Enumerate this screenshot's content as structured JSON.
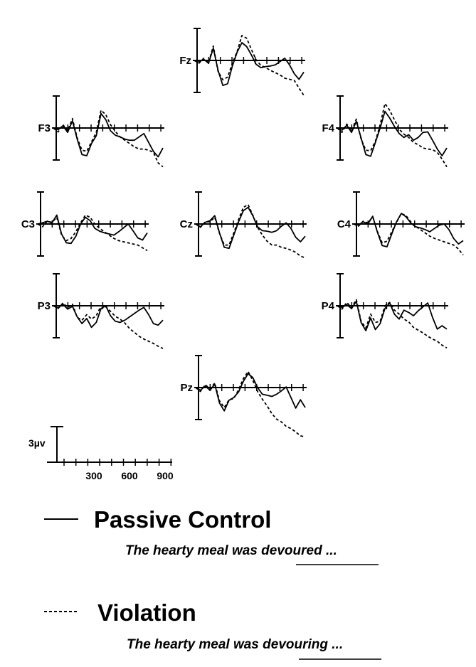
{
  "chart_data": {
    "type": "line",
    "channels": [
      {
        "label": "Fz",
        "series": [
          [
            0,
            -0.3,
            0.2,
            -0.5,
            2.2,
            -1.8,
            -4.5,
            -4.2,
            -1.0,
            1.5,
            3.2,
            2.5,
            1.0,
            -0.7,
            -1.3,
            -1.1,
            -1.0,
            -0.8,
            -0.2,
            0.4,
            -0.8,
            -2.4,
            -3.4,
            -2.1
          ],
          [
            0,
            -0.5,
            0.4,
            -0.4,
            2.6,
            -2.0,
            -3.5,
            -3.0,
            -0.5,
            1.6,
            4.5,
            4.0,
            2.0,
            0.1,
            -0.9,
            -1.3,
            -1.8,
            -2.2,
            -2.6,
            -3.2,
            -3.4,
            -3.6,
            -5.0,
            -6.3
          ]
        ]
      },
      {
        "label": "F3",
        "series": [
          [
            0,
            -0.3,
            0.4,
            -0.8,
            1.3,
            -2.0,
            -4.8,
            -5.0,
            -2.8,
            -1.4,
            2.6,
            1.5,
            -0.5,
            -1.3,
            -1.6,
            -2.0,
            -2.2,
            -2.2,
            -1.6,
            -1.0,
            -2.6,
            -4.2,
            -5.2,
            -3.6
          ],
          [
            0,
            -0.7,
            0.6,
            -0.5,
            1.7,
            -1.8,
            -4.0,
            -4.2,
            -2.5,
            -0.8,
            3.2,
            2.4,
            0.6,
            -0.6,
            -1.6,
            -2.2,
            -2.8,
            -3.4,
            -3.8,
            -3.8,
            -4.0,
            -4.4,
            -6.3,
            -7.0
          ]
        ]
      },
      {
        "label": "F4",
        "series": [
          [
            0,
            -0.4,
            0.5,
            -0.8,
            1.2,
            -1.8,
            -4.8,
            -5.1,
            -2.6,
            0.0,
            3.0,
            1.8,
            0.3,
            -1.0,
            -1.7,
            -1.2,
            -2.2,
            -1.7,
            -0.8,
            -0.7,
            -2.2,
            -3.8,
            -5.0,
            -3.6
          ],
          [
            0,
            -0.8,
            0.7,
            -0.5,
            1.6,
            -2.0,
            -4.0,
            -4.1,
            -2.4,
            0.6,
            4.4,
            3.2,
            1.5,
            -0.2,
            -1.1,
            -1.7,
            -2.6,
            -3.0,
            -3.6,
            -3.8,
            -3.9,
            -4.4,
            -5.6,
            -7.0
          ]
        ]
      },
      {
        "label": "C3",
        "series": [
          [
            0,
            0.2,
            0.5,
            0.2,
            1.6,
            -1.8,
            -3.4,
            -3.5,
            -2.2,
            0.0,
            1.2,
            0.6,
            -0.8,
            -1.3,
            -1.6,
            -1.8,
            -2.0,
            -1.4,
            -0.7,
            0.0,
            -1.2,
            -2.5,
            -2.9,
            -1.6
          ],
          [
            0,
            -0.5,
            0.5,
            0.3,
            1.2,
            -2.0,
            -3.0,
            -2.6,
            -1.4,
            0.2,
            1.6,
            1.2,
            0.0,
            -0.8,
            -1.4,
            -2.0,
            -2.6,
            -3.0,
            -3.2,
            -3.4,
            -3.6,
            -3.8,
            -4.3,
            -4.8
          ]
        ]
      },
      {
        "label": "Cz",
        "series": [
          [
            0,
            -0.5,
            0.3,
            0.6,
            1.5,
            -1.6,
            -4.2,
            -4.4,
            -2.0,
            0.4,
            2.4,
            3.0,
            1.5,
            -0.5,
            -1.2,
            -1.3,
            -1.5,
            -1.2,
            -0.4,
            0.2,
            -0.8,
            -2.4,
            -3.2,
            -2.2
          ],
          [
            0,
            -0.6,
            0.4,
            0.4,
            1.2,
            -1.7,
            -3.8,
            -3.8,
            -1.6,
            0.8,
            3.0,
            3.5,
            1.6,
            -0.6,
            -2.0,
            -3.1,
            -3.8,
            -3.8,
            -4.2,
            -4.4,
            -4.7,
            -5.1,
            -5.8,
            -6.1
          ]
        ]
      },
      {
        "label": "C4",
        "series": [
          [
            0,
            -0.2,
            0.4,
            0.0,
            1.4,
            -1.5,
            -3.9,
            -4.1,
            -1.8,
            0.4,
            1.9,
            1.3,
            0.2,
            -0.5,
            -0.7,
            -1.0,
            -1.4,
            -0.8,
            -0.2,
            0.0,
            -1.0,
            -2.6,
            -3.6,
            -3.0
          ],
          [
            0,
            -0.4,
            0.5,
            0.2,
            1.3,
            -1.4,
            -3.4,
            -3.1,
            -1.4,
            0.3,
            1.9,
            1.5,
            0.4,
            -0.4,
            -1.0,
            -1.6,
            -2.2,
            -2.6,
            -2.9,
            -3.2,
            -3.5,
            -3.8,
            -4.5,
            -5.6
          ]
        ]
      },
      {
        "label": "P3",
        "series": [
          [
            0,
            -0.4,
            0.3,
            -0.6,
            -0.1,
            -2.0,
            -3.2,
            -2.3,
            -3.9,
            -3.0,
            -0.5,
            0.0,
            -1.8,
            -2.8,
            -3.0,
            -2.6,
            -2.0,
            -1.4,
            -0.8,
            -0.3,
            -1.6,
            -3.2,
            -3.5,
            -2.6
          ],
          [
            0,
            -0.5,
            0.5,
            -0.3,
            0.3,
            -2.1,
            -2.6,
            -1.6,
            -2.4,
            -1.8,
            0.0,
            -0.2,
            -1.0,
            -1.9,
            -2.4,
            -3.1,
            -4.1,
            -4.8,
            -5.5,
            -6.0,
            -6.4,
            -6.8,
            -7.3,
            -7.7
          ]
        ]
      },
      {
        "label": "P4",
        "series": [
          [
            0,
            -0.3,
            0.2,
            -0.5,
            0.8,
            -3.0,
            -4.5,
            -2.2,
            -4.3,
            -3.2,
            -0.5,
            0.5,
            -1.5,
            -2.4,
            -0.8,
            -1.2,
            -1.8,
            -0.9,
            -0.2,
            0.5,
            -2.1,
            -4.2,
            -3.6,
            -4.2
          ],
          [
            0,
            -0.6,
            0.6,
            -0.3,
            1.1,
            -2.8,
            -4.0,
            -1.5,
            -3.0,
            -2.8,
            0.0,
            0.6,
            -0.8,
            -1.5,
            -2.4,
            -2.9,
            -3.9,
            -4.4,
            -4.9,
            -5.5,
            -6.0,
            -6.4,
            -7.1,
            -7.6
          ]
        ]
      },
      {
        "label": "Pz",
        "series": [
          [
            0,
            -0.5,
            0.3,
            -0.5,
            0.6,
            -2.8,
            -4.2,
            -2.3,
            -1.8,
            -0.8,
            1.1,
            2.5,
            1.8,
            0.0,
            -1.2,
            -1.4,
            -1.6,
            -1.2,
            -0.6,
            0.1,
            -1.8,
            -3.7,
            -2.2,
            -3.6
          ],
          [
            0,
            -0.7,
            0.5,
            -0.2,
            0.8,
            -2.4,
            -3.6,
            -2.2,
            -2.0,
            -0.4,
            1.6,
            2.9,
            1.3,
            -0.7,
            -2.1,
            -3.3,
            -4.7,
            -5.7,
            -6.2,
            -7.0,
            -7.4,
            -8.0,
            -8.7,
            -8.9
          ]
        ]
      }
    ],
    "x_ticks": [
      "300",
      "600",
      "900"
    ],
    "y_scale_label": "3µv",
    "legend": [
      {
        "label": "Passive Control",
        "sentence_prefix": "The hearty meal was ",
        "sentence_word": "devoured",
        "sentence_suffix": " ...",
        "line": "solid"
      },
      {
        "label": "Violation",
        "sentence_prefix": "The hearty meal was ",
        "sentence_word": "devouring",
        "sentence_suffix": " ...",
        "line": "dashed"
      }
    ]
  }
}
